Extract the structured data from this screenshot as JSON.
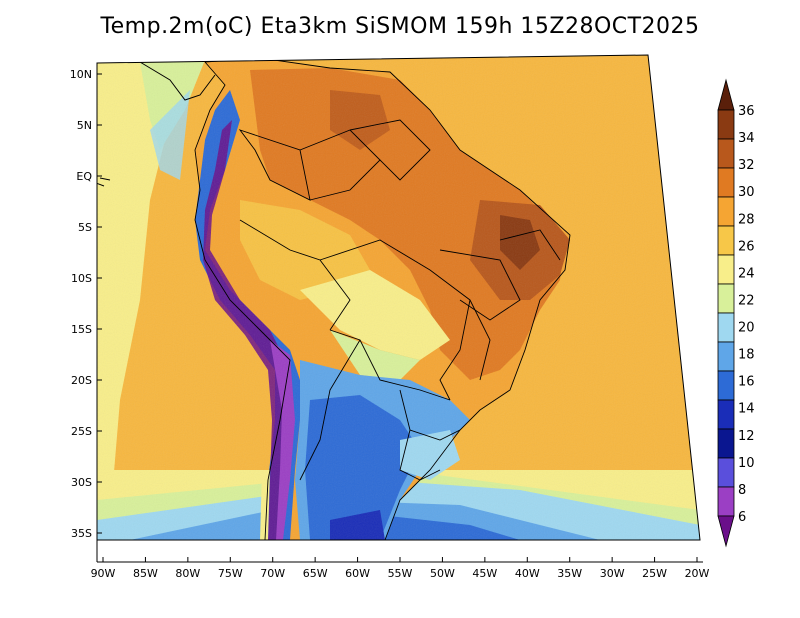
{
  "title": "Temp.2m(oC) Eta3km SiSMOM 159h 15Z28OCT2025",
  "lat_labels": [
    "10N",
    "5N",
    "EQ",
    "5S",
    "10S",
    "15S",
    "20S",
    "25S",
    "30S",
    "35S"
  ],
  "lon_labels": [
    "90W",
    "85W",
    "80W",
    "75W",
    "70W",
    "65W",
    "60W",
    "55W",
    "50W",
    "45W",
    "40W",
    "35W",
    "30W",
    "25W",
    "20W"
  ],
  "colorbar": {
    "labels": [
      "36",
      "34",
      "32",
      "30",
      "28",
      "26",
      "24",
      "22",
      "20",
      "18",
      "16",
      "14",
      "12",
      "10",
      "8",
      "6"
    ],
    "colors": [
      "#5a1f0a",
      "#8a3a12",
      "#b8581c",
      "#e07a22",
      "#f5a533",
      "#f7c748",
      "#f8ee8a",
      "#d8f09a",
      "#9fd8f0",
      "#5fa6e8",
      "#2d6bd6",
      "#1a2db8",
      "#0a1690",
      "#5a4fdc",
      "#9b3fc4",
      "#6a0f8a"
    ]
  }
}
